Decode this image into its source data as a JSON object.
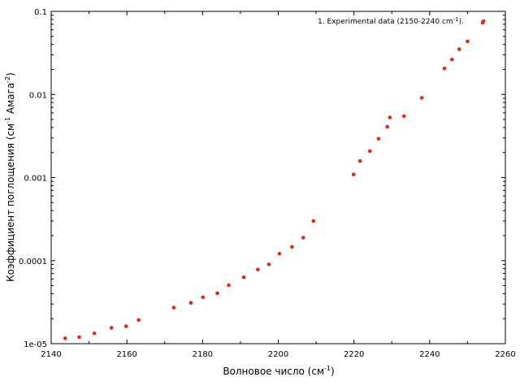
{
  "chart_data": {
    "type": "scatter",
    "xlabel": "Волновое число (см",
    "xlabel_sup": "-1",
    "xlabel_end": ")",
    "ylabel_parts": [
      "Коэффициент поглощения (см",
      "-1",
      " Амага",
      "-2",
      ")"
    ],
    "xlim": [
      2140,
      2260
    ],
    "ylim": [
      1e-05,
      0.1
    ],
    "y_scale": "log",
    "x_ticks": [
      "2140",
      "2160",
      "2180",
      "2200",
      "2220",
      "2240",
      "2260"
    ],
    "y_ticks": [
      "1e-05",
      "0.0001",
      "0.001",
      "0.01",
      "0.1"
    ],
    "grid": false,
    "legend_position": "top-right",
    "series": [
      {
        "name": "1. Experimental data (2150-2240 cm",
        "name_sup": "-1",
        "name_end": ").",
        "color": "#dd2a1e",
        "x": [
          2143.7,
          2147.4,
          2151.4,
          2155.9,
          2159.8,
          2163.1,
          2172.4,
          2176.9,
          2180.1,
          2183.9,
          2186.9,
          2190.9,
          2194.6,
          2197.5,
          2200.3,
          2203.6,
          2206.6,
          2209.3,
          2219.9,
          2221.6,
          2224.2,
          2226.5,
          2228.8,
          2229.5,
          2233.2,
          2237.9,
          2243.9,
          2245.9,
          2247.8,
          2250.0,
          2254.0
        ],
        "y": [
          1.16e-05,
          1.2e-05,
          1.33e-05,
          1.55e-05,
          1.62e-05,
          1.93e-05,
          2.72e-05,
          3.1e-05,
          3.62e-05,
          4.05e-05,
          5.06e-05,
          6.3e-05,
          7.8e-05,
          9e-05,
          0.000121,
          0.000146,
          0.000189,
          0.0003,
          0.00109,
          0.00158,
          0.00208,
          0.00293,
          0.00408,
          0.00528,
          0.00548,
          0.0091,
          0.0206,
          0.0263,
          0.035,
          0.0436,
          0.073
        ]
      }
    ]
  }
}
